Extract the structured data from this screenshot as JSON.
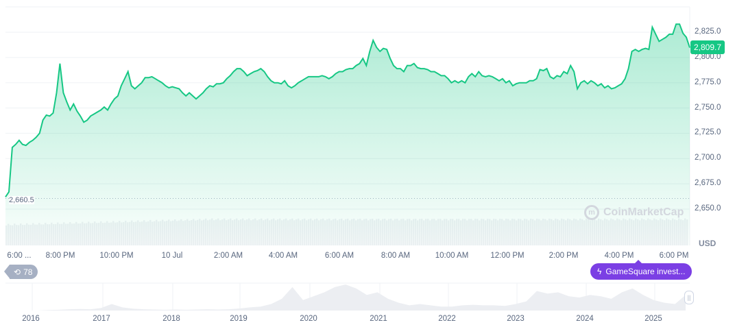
{
  "chart_data": {
    "type": "area",
    "currency": "USD",
    "x_start": "9 Jul 6:05 PM",
    "x_end": "10 Jul 6:34 PM",
    "x_tick_labels": [
      "6:00 ...",
      "8:00 PM",
      "10:00 PM",
      "10 Jul",
      "2:00 AM",
      "4:00 AM",
      "6:00 AM",
      "8:00 AM",
      "10:00 AM",
      "12:00 PM",
      "2:00 PM",
      "4:00 PM",
      "6:00 PM"
    ],
    "y_tick_labels": [
      "2,825.0",
      "2,800.0",
      "2,775.0",
      "2,750.0",
      "2,725.0",
      "2,700.0",
      "2,675.0",
      "2,650.0"
    ],
    "y_ticks": [
      2825,
      2800,
      2775,
      2750,
      2725,
      2700,
      2675,
      2650
    ],
    "ylim": [
      2615,
      2850
    ],
    "grid": true,
    "line_color": "#16c784",
    "current_price_label": "2,809.7",
    "min_price_label": "2,660.5",
    "min_price": 2660.5,
    "values": [
      2662,
      2667,
      2711,
      2714,
      2718,
      2714,
      2713,
      2716,
      2718,
      2721,
      2725,
      2738,
      2743,
      2742,
      2745,
      2765,
      2794,
      2765,
      2756,
      2748,
      2754,
      2747,
      2742,
      2736,
      2738,
      2742,
      2744,
      2746,
      2748,
      2751,
      2748,
      2754,
      2759,
      2762,
      2772,
      2779,
      2786,
      2772,
      2769,
      2772,
      2775,
      2780,
      2780,
      2781,
      2779,
      2777,
      2775,
      2772,
      2770,
      2771,
      2770,
      2769,
      2765,
      2762,
      2765,
      2762,
      2759,
      2762,
      2765,
      2769,
      2772,
      2771,
      2774,
      2774,
      2775,
      2779,
      2782,
      2786,
      2789,
      2789,
      2786,
      2782,
      2784,
      2786,
      2787,
      2789,
      2786,
      2781,
      2777,
      2775,
      2775,
      2774,
      2777,
      2772,
      2770,
      2772,
      2775,
      2777,
      2779,
      2781,
      2781,
      2781,
      2781,
      2782,
      2781,
      2779,
      2781,
      2784,
      2786,
      2786,
      2788,
      2789,
      2789,
      2792,
      2794,
      2799,
      2792,
      2806,
      2817,
      2810,
      2806,
      2809,
      2808,
      2799,
      2792,
      2789,
      2789,
      2786,
      2792,
      2792,
      2794,
      2790,
      2789,
      2789,
      2788,
      2786,
      2786,
      2784,
      2782,
      2782,
      2779,
      2775,
      2777,
      2775,
      2777,
      2775,
      2781,
      2784,
      2781,
      2786,
      2782,
      2781,
      2782,
      2781,
      2779,
      2777,
      2779,
      2775,
      2777,
      2772,
      2774,
      2775,
      2775,
      2775,
      2777,
      2777,
      2779,
      2788,
      2787,
      2789,
      2781,
      2779,
      2782,
      2781,
      2786,
      2784,
      2792,
      2786,
      2769,
      2775,
      2777,
      2774,
      2777,
      2775,
      2772,
      2774,
      2770,
      2772,
      2769,
      2770,
      2772,
      2774,
      2779,
      2789,
      2806,
      2808,
      2806,
      2808,
      2809,
      2808,
      2830,
      2823,
      2816,
      2818,
      2820,
      2823,
      2823,
      2833,
      2833,
      2824,
      2820,
      2809.7
    ],
    "navigator": {
      "years": [
        "2016",
        "2017",
        "2018",
        "2019",
        "2020",
        "2021",
        "2022",
        "2023",
        "2024",
        "2025"
      ],
      "relative_values": [
        0,
        0,
        0,
        0,
        0.02,
        0.03,
        0.05,
        0.06,
        0.05,
        0.1,
        0.25,
        0.12,
        0.07,
        0.05,
        0.04,
        0.03,
        0.04,
        0.03,
        0.04,
        0.05,
        0.04,
        0.05,
        0.08,
        0.12,
        0.15,
        0.25,
        0.45,
        0.9,
        0.4,
        0.55,
        0.7,
        0.9,
        1.0,
        0.85,
        0.6,
        0.7,
        0.45,
        0.3,
        0.2,
        0.25,
        0.2,
        0.15,
        0.15,
        0.2,
        0.22,
        0.2,
        0.2,
        0.18,
        0.25,
        0.35,
        0.75,
        0.65,
        0.7,
        0.55,
        0.5,
        0.6,
        0.55,
        0.45,
        0.7,
        0.85,
        0.6,
        0.4,
        0.3,
        0.25,
        0.6
      ]
    }
  },
  "watermark": "CoinMarketCap",
  "history_badge": {
    "count": "78",
    "icon": "history-icon"
  },
  "news_badge": {
    "label": "GameSquare invest...",
    "icon": "lightning-icon",
    "color": "#7b3fe4"
  }
}
